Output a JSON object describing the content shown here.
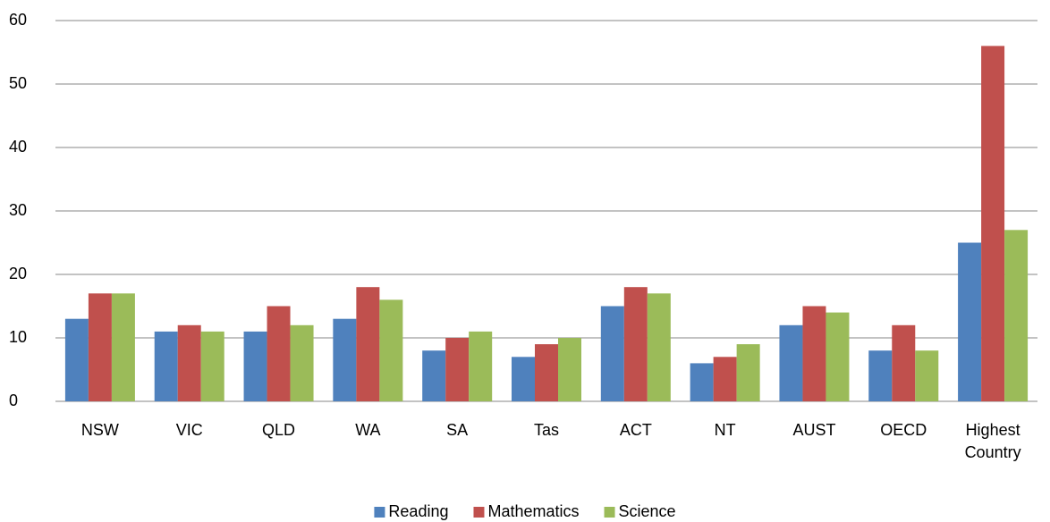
{
  "chart_data": {
    "type": "bar",
    "categories": [
      "NSW",
      "VIC",
      "QLD",
      "WA",
      "SA",
      "Tas",
      "ACT",
      "NT",
      "AUST",
      "OECD",
      "Highest Country"
    ],
    "series": [
      {
        "name": "Reading",
        "color": "#4f81bd",
        "values": [
          13,
          11,
          11,
          13,
          8,
          7,
          15,
          6,
          12,
          8,
          25
        ]
      },
      {
        "name": "Mathematics",
        "color": "#c0504d",
        "values": [
          17,
          12,
          15,
          18,
          10,
          9,
          18,
          7,
          15,
          12,
          56
        ]
      },
      {
        "name": "Science",
        "color": "#9bbb59",
        "values": [
          17,
          11,
          12,
          16,
          11,
          10,
          17,
          9,
          14,
          8,
          27
        ]
      }
    ],
    "ylim": [
      0,
      60
    ],
    "yticks": [
      0,
      10,
      20,
      30,
      40,
      50,
      60
    ],
    "grid": true,
    "legend": "bottom"
  }
}
